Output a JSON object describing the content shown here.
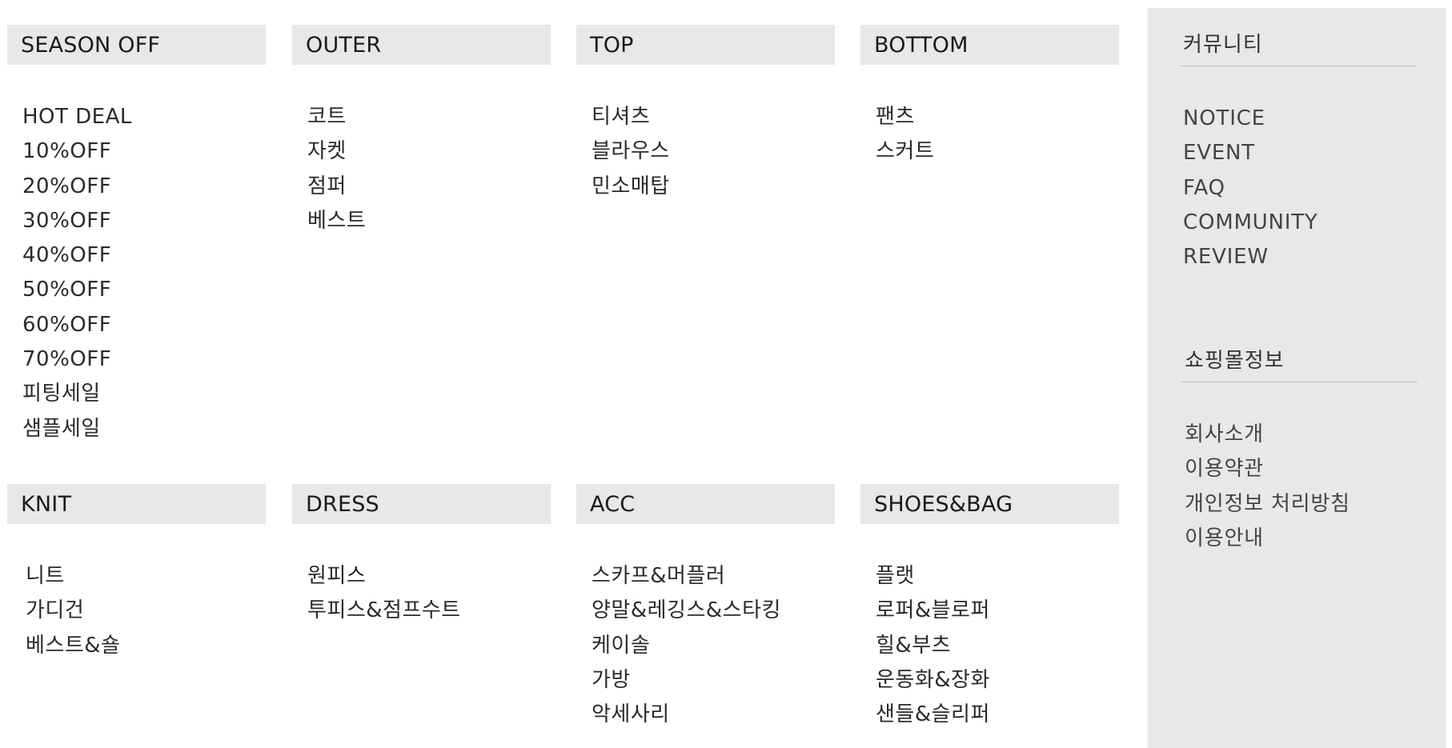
{
  "categories": [
    {
      "title": "SEASON OFF",
      "items": [
        "HOT DEAL",
        "10%OFF",
        "20%OFF",
        "30%OFF",
        "40%OFF",
        "50%OFF",
        "60%OFF",
        "70%OFF",
        "피팅세일",
        "샘플세일"
      ]
    },
    {
      "title": "OUTER",
      "items": [
        "코트",
        "자켓",
        "점퍼",
        "베스트"
      ]
    },
    {
      "title": "TOP",
      "items": [
        "티셔츠",
        "블라우스",
        "민소매탑"
      ]
    },
    {
      "title": "BOTTOM",
      "items": [
        "팬츠",
        "스커트"
      ]
    },
    {
      "title": "KNIT",
      "items": [
        "니트",
        "가디건",
        "베스트&숄"
      ]
    },
    {
      "title": "DRESS",
      "items": [
        "원피스",
        "투피스&점프수트"
      ]
    },
    {
      "title": "ACC",
      "items": [
        "스카프&머플러",
        "양말&레깅스&스타킹",
        "케이솔",
        "가방",
        "악세사리"
      ]
    },
    {
      "title": "SHOES&BAG",
      "items": [
        "플랫",
        "로퍼&블로퍼",
        "힐&부츠",
        "운동화&장화",
        "샌들&슬리퍼"
      ]
    }
  ],
  "sidebar": {
    "community": {
      "title": "커뮤니티",
      "items": [
        "NOTICE",
        "EVENT",
        "FAQ",
        "COMMUNITY",
        "REVIEW"
      ]
    },
    "shop_info": {
      "title": "쇼핑몰정보",
      "items": [
        "회사소개",
        "이용약관",
        "개인정보 처리방침",
        "이용안내"
      ]
    }
  },
  "colors": {
    "header_bg": "#e8e8e9",
    "sidebar_bg": "#e8e8e9",
    "text": "#222222"
  }
}
